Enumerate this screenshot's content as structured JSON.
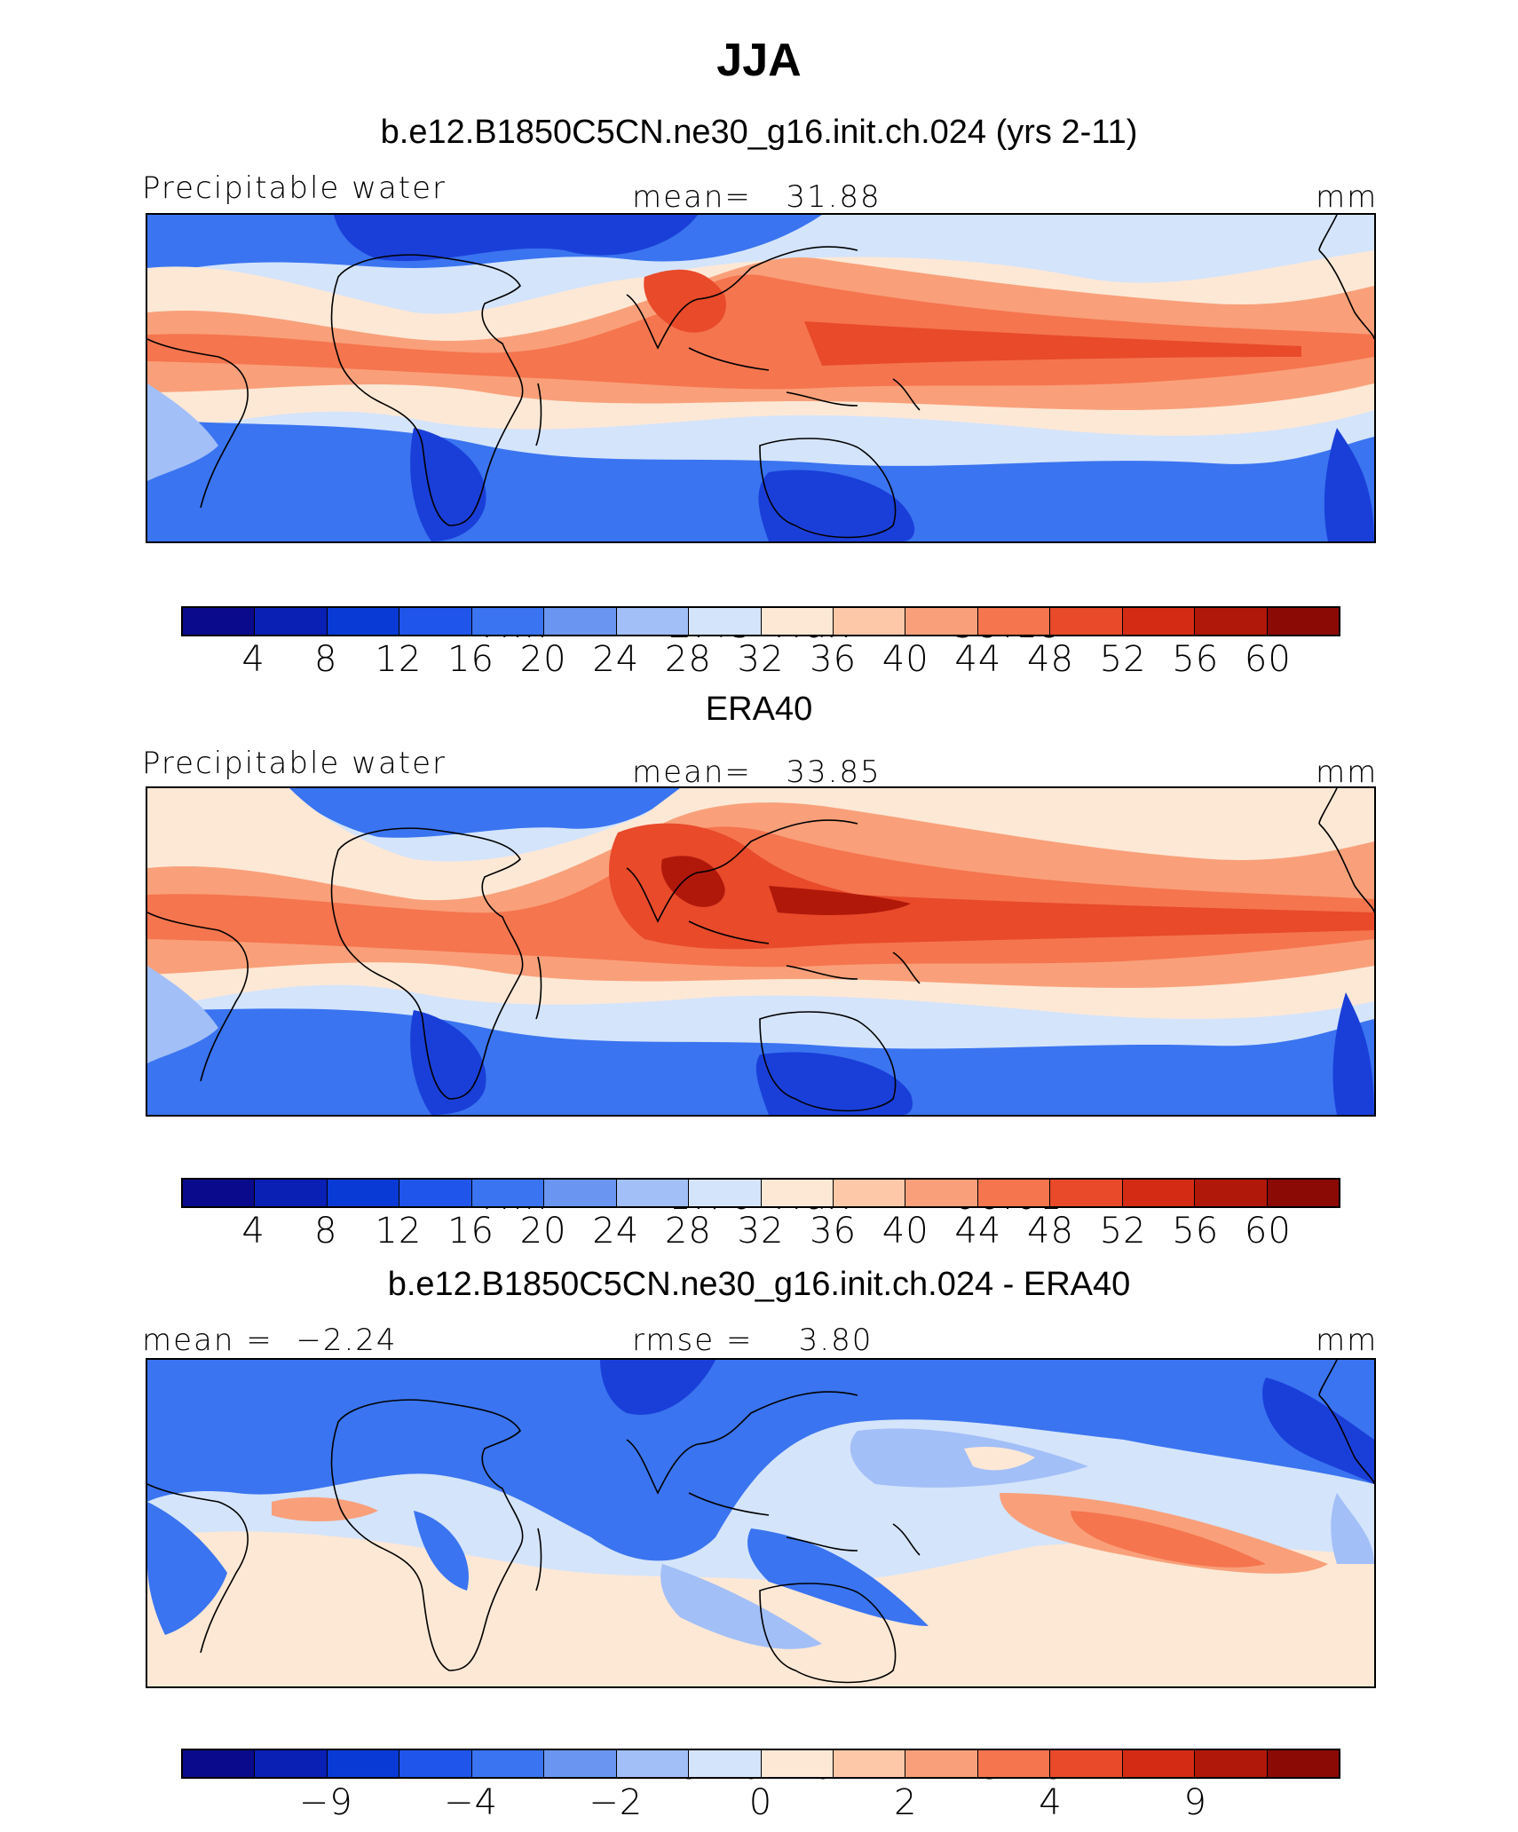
{
  "title": "JJA",
  "panels": [
    {
      "title": "b.e12.B1850C5CN.ne30_g16.init.ch.024 (yrs 2-11)",
      "left_label": "Precipitable water",
      "center_label": "mean=   31.88",
      "right_label": "mm",
      "min_label": "Min  =",
      "min_value": "2.45",
      "max_label": "Max  =",
      "max_value": "59.19",
      "tick_labels": [
        "4",
        "8",
        "12",
        "16",
        "20",
        "24",
        "28",
        "32",
        "36",
        "40",
        "44",
        "48",
        "52",
        "56",
        "60"
      ]
    },
    {
      "title": "ERA40",
      "left_label": "Precipitable water",
      "center_label": "mean=   33.85",
      "right_label": "mm",
      "min_label": "Min  =",
      "min_value": "1.70",
      "max_label": "Max  =",
      "max_value": "66.01",
      "tick_labels": [
        "4",
        "8",
        "12",
        "16",
        "20",
        "24",
        "28",
        "32",
        "36",
        "40",
        "44",
        "48",
        "52",
        "56",
        "60"
      ]
    },
    {
      "title": "b.e12.B1850C5CN.ne30_g16.init.ch.024 - ERA40",
      "left_label": "mean =  −2.24",
      "center_label": "rmse =    3.80",
      "right_label": "mm",
      "min_label": "Min  =",
      "min_value": "−28.46",
      "max_label": "Max  =",
      "max_value": "5.18",
      "tick_labels": [
        "−9",
        "−4",
        "−2",
        "0",
        "2",
        "4",
        "9"
      ]
    }
  ],
  "colorbar_colors": [
    "#0a0a8c",
    "#0a1fb4",
    "#0a3ad6",
    "#1f55eb",
    "#3a74f0",
    "#6a96f2",
    "#a2bff7",
    "#d4e4fb",
    "#fde8d6",
    "#fcc8a8",
    "#f9a07a",
    "#f5754e",
    "#e84a2a",
    "#d42c14",
    "#b0180a",
    "#8c0a05"
  ],
  "layer_colors": {
    "deep_blue": "#1a3fd9",
    "blue": "#3a74f0",
    "light_blue": "#a2bff7",
    "pale_blue": "#d4e4fb",
    "pale_orange": "#fde8d6",
    "light_orange": "#f9a07a",
    "orange": "#f5754e",
    "red": "#e84a2a",
    "dark_red": "#b0180a"
  }
}
